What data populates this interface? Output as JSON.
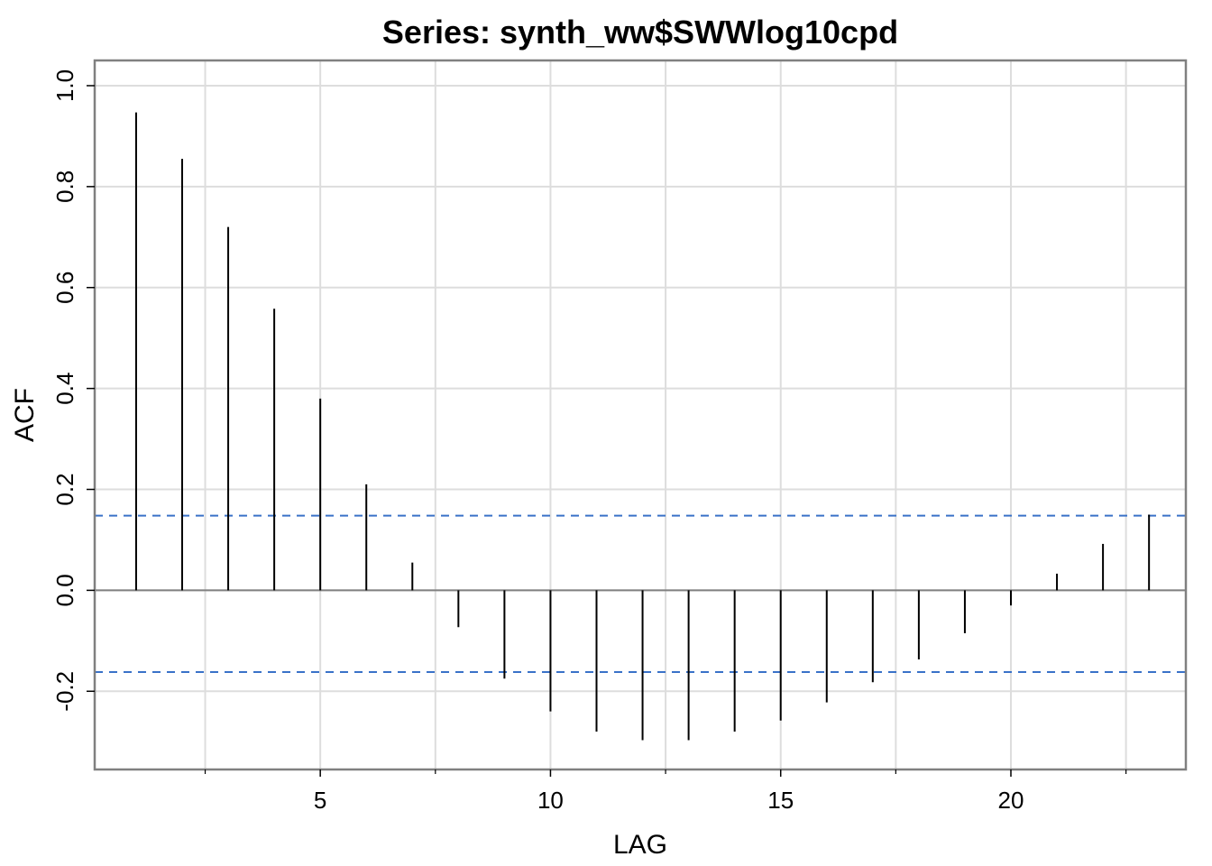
{
  "chart_data": {
    "type": "bar",
    "title": "Series:  synth_ww$SWWlog10cpd",
    "xlabel": "LAG",
    "ylabel": "ACF",
    "xlim": [
      0.1,
      23.8
    ],
    "ylim": [
      -0.355,
      1.05
    ],
    "x_ticks": [
      5,
      10,
      15,
      20
    ],
    "x_tick_labels": [
      "5",
      "10",
      "15",
      "20"
    ],
    "x_minor_ticks": [
      2.5,
      7.5,
      12.5,
      17.5,
      22.5
    ],
    "y_ticks": [
      -0.2,
      0.0,
      0.2,
      0.4,
      0.6,
      0.8,
      1.0
    ],
    "y_tick_labels": [
      "-0.2",
      "0.0",
      "0.2",
      "0.4",
      "0.6",
      "0.8",
      "1.0"
    ],
    "grid": true,
    "confidence_bounds": [
      0.148,
      -0.162
    ],
    "colors": {
      "spike": "#000000",
      "bound": "#3a72c8",
      "grid": "#dddddd",
      "frame": "#808080",
      "zero_line": "#808080"
    },
    "lags": [
      1,
      2,
      3,
      4,
      5,
      6,
      7,
      8,
      9,
      10,
      11,
      12,
      13,
      14,
      15,
      16,
      17,
      18,
      19,
      20,
      21,
      22,
      23
    ],
    "acf": [
      0.947,
      0.855,
      0.72,
      0.558,
      0.38,
      0.21,
      0.055,
      -0.073,
      -0.175,
      -0.24,
      -0.28,
      -0.297,
      -0.297,
      -0.28,
      -0.258,
      -0.222,
      -0.182,
      -0.137,
      -0.085,
      -0.03,
      0.033,
      0.092,
      0.15
    ]
  }
}
